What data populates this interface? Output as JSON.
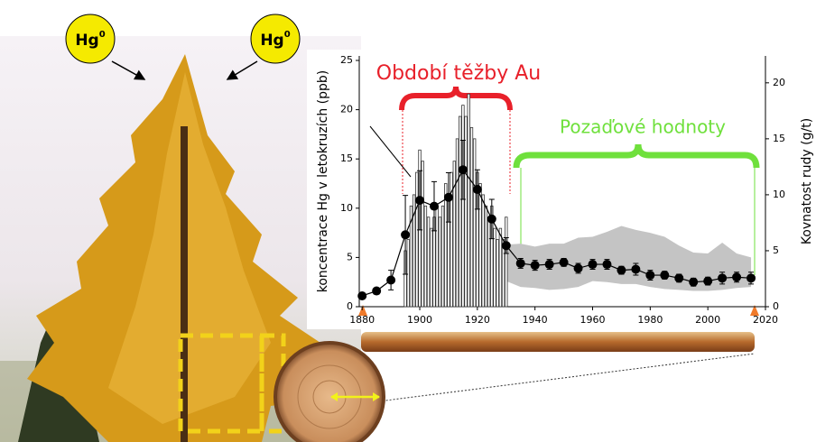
{
  "illustration": {
    "hg_base": "Hg",
    "hg_sup": "0"
  },
  "chart_data": {
    "type": "line",
    "ylabel": "koncentrace Hg v letokruzích (ppb)",
    "y2label": "Kovnatost rudy (g/t)",
    "xlim": [
      1879,
      2020
    ],
    "xticks": [
      1880,
      1900,
      1920,
      1940,
      1960,
      1980,
      2000,
      2020
    ],
    "ylim": [
      0,
      25
    ],
    "yticks": [
      0,
      5,
      10,
      15,
      20,
      25
    ],
    "y2lim": [
      0,
      22
    ],
    "y2ticks": [
      0,
      5,
      10,
      15,
      20
    ],
    "annotations": [
      {
        "text": "Období těžby Au",
        "color": "#e8202a"
      },
      {
        "text": "Pozaďové hodnoty",
        "color": "#6fe03c"
      }
    ],
    "series": [
      {
        "type": "band",
        "color": "#c4c4c4",
        "x": [
          1930,
          1935,
          1940,
          1945,
          1950,
          1955,
          1960,
          1965,
          1970,
          1975,
          1980,
          1985,
          1990,
          1995,
          2000,
          2005,
          2010,
          2015
        ],
        "lower": [
          2.6,
          2.0,
          1.9,
          1.7,
          1.8,
          2.0,
          2.6,
          2.5,
          2.3,
          2.3,
          2.0,
          1.8,
          1.7,
          1.6,
          1.6,
          1.7,
          1.9,
          2.0
        ],
        "upper": [
          6.3,
          6.4,
          6.1,
          6.4,
          6.4,
          7.0,
          7.1,
          7.6,
          8.2,
          7.8,
          7.5,
          7.1,
          6.2,
          5.5,
          5.4,
          6.5,
          5.4,
          5.0
        ]
      },
      {
        "type": "bar",
        "axis": "y2",
        "color": "#ffffff",
        "x": [
          1895,
          1896,
          1897,
          1898,
          1899,
          1900,
          1901,
          1902,
          1903,
          1904,
          1905,
          1906,
          1907,
          1908,
          1909,
          1910,
          1911,
          1912,
          1913,
          1914,
          1915,
          1916,
          1917,
          1918,
          1919,
          1920,
          1921,
          1922,
          1923,
          1924,
          1925,
          1926,
          1927,
          1928,
          1929,
          1930
        ],
        "values": [
          5,
          6,
          9,
          10,
          12,
          14,
          13,
          9,
          8,
          7,
          8,
          9,
          8,
          9,
          11,
          10,
          12,
          13,
          15,
          17,
          18,
          17,
          19,
          16,
          15,
          12,
          11,
          10,
          9,
          8,
          9,
          7,
          6,
          7,
          6,
          8
        ]
      },
      {
        "type": "line",
        "color": "#000000",
        "x": [
          1880,
          1885,
          1890,
          1895,
          1900,
          1905,
          1910,
          1915,
          1920,
          1925,
          1930,
          1935,
          1940,
          1945,
          1950,
          1955,
          1960,
          1965,
          1970,
          1975,
          1980,
          1985,
          1990,
          1995,
          2000,
          2005,
          2010,
          2015
        ],
        "values": [
          1.1,
          1.6,
          2.7,
          7.3,
          10.8,
          10.2,
          11.1,
          13.9,
          11.9,
          8.9,
          6.2,
          4.4,
          4.2,
          4.3,
          4.5,
          3.9,
          4.3,
          4.3,
          3.7,
          3.8,
          3.2,
          3.2,
          2.9,
          2.5,
          2.6,
          2.9,
          3.0,
          2.9
        ],
        "errors": [
          0.3,
          0.3,
          1.0,
          4.0,
          3.0,
          2.5,
          2.5,
          3.0,
          2.0,
          2.0,
          0.8,
          0.5,
          0.5,
          0.5,
          0.4,
          0.5,
          0.5,
          0.5,
          0.4,
          0.6,
          0.5,
          0.4,
          0.4,
          0.4,
          0.4,
          0.6,
          0.5,
          0.6
        ]
      }
    ]
  }
}
